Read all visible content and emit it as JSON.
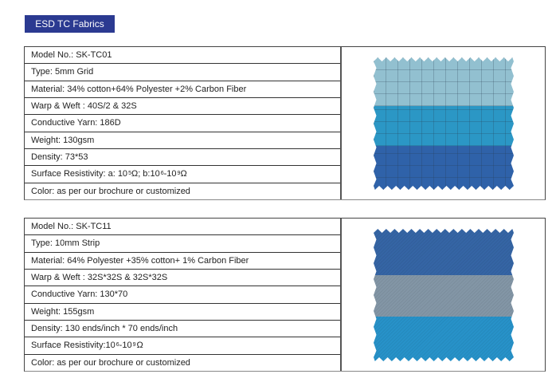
{
  "header": {
    "title": "ESD TC Fabrics",
    "badge_color": "#2b3a91"
  },
  "products": [
    {
      "rows": [
        "Model No.: SK-TC01",
        "Type: 5mm Grid",
        "Material: 34% cotton+64% Polyester +2% Carbon Fiber",
        "Warp & Weft : 40S/2 & 32S",
        "Conductive Yarn: 186D",
        "Weight: 130gsm",
        "Density: 73*53"
      ],
      "resistivity": {
        "prefix": "Surface Resistivity: a: 10",
        "exp_a": "5",
        "mid": " Ω; b:10",
        "exp_b1": "6",
        "dash": "-10",
        "exp_b2": "9",
        "unit": " Ω"
      },
      "color_row": "Color: as per our brochure or customized",
      "swatch": {
        "pattern": "grid",
        "bands": [
          "#92c0d0",
          "#2b97c5",
          "#2f62a9"
        ]
      }
    },
    {
      "rows": [
        "Model No.: SK-TC11",
        "Type: 10mm Strip",
        "Material:  64% Polyester +35% cotton+ 1% Carbon Fiber",
        "Warp & Weft : 32S*32S & 32S*32S",
        "Conductive Yarn: 130*70",
        "Weight: 155gsm",
        "Density: 130 ends/inch * 70 ends/inch"
      ],
      "resistivity": {
        "prefix": "Surface Resistivity:10",
        "exp_a": "6",
        "mid": "-10",
        "exp_b1": "9",
        "dash": "",
        "exp_b2": "",
        "unit": " Ω"
      },
      "color_row": "Color: as per our brochure or customized",
      "swatch": {
        "pattern": "twill",
        "bands": [
          "#3565a5",
          "#8396a6",
          "#2792c9"
        ]
      }
    }
  ]
}
